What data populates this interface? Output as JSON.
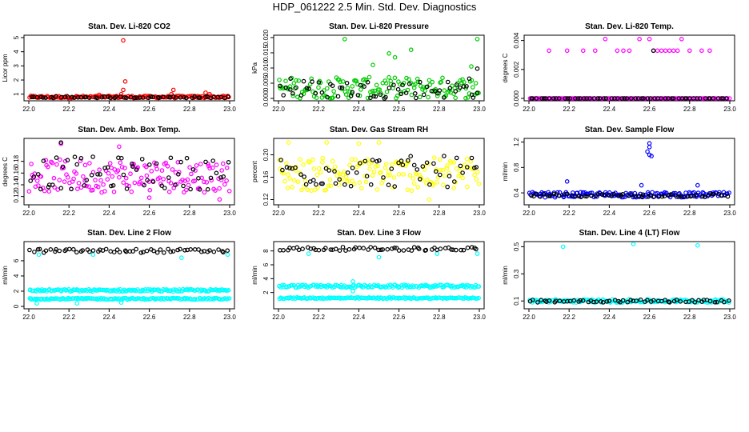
{
  "page": {
    "title": "HDP_061222  2.5 Min. Std. Dev. Diagnostics"
  },
  "chart_data": [
    {
      "type": "scatter",
      "title": "Stan. Dev. Li-820 CO2",
      "ylabel": "Licor ppm",
      "xlim": [
        22.0,
        23.0
      ],
      "ylim": [
        0.7,
        5.0
      ],
      "xticks": [
        "22.0",
        "22.2",
        "22.4",
        "22.6",
        "22.8",
        "23.0"
      ],
      "yticks": [
        "1",
        "2",
        "3",
        "4",
        "5"
      ],
      "series": [
        {
          "name": "primary",
          "color": "#ff0000",
          "base": 0.8,
          "spread": 0.08,
          "outliers": [
            [
              22.47,
              4.8
            ],
            [
              22.48,
              1.9
            ],
            [
              22.47,
              1.3
            ],
            [
              22.46,
              1.0
            ],
            [
              22.72,
              1.3
            ],
            [
              22.71,
              1.0
            ],
            [
              22.88,
              1.1
            ],
            [
              22.9,
              1.0
            ],
            [
              22.35,
              0.95
            ]
          ]
        },
        {
          "name": "secondary",
          "color": "#000000",
          "base": 0.78,
          "spread": 0.05,
          "outliers": []
        }
      ]
    },
    {
      "type": "scatter",
      "title": "Stan. Dev. Li-820 Pressure",
      "ylabel": "kPa",
      "xlim": [
        22.0,
        23.0
      ],
      "ylim": [
        0.0,
        0.02
      ],
      "xticks": [
        "22.0",
        "22.2",
        "22.4",
        "22.6",
        "22.8",
        "23.0"
      ],
      "yticks": [
        "0.000",
        "0.005",
        "0.010",
        "0.015",
        "0.020"
      ],
      "series": [
        {
          "name": "primary",
          "color": "#00cc00",
          "base": 0.0035,
          "spread": 0.0035,
          "outliers": [
            [
              22.33,
              0.0195
            ],
            [
              22.99,
              0.0195
            ],
            [
              22.66,
              0.016
            ],
            [
              22.55,
              0.0148
            ],
            [
              22.58,
              0.0135
            ],
            [
              22.47,
              0.011
            ],
            [
              22.96,
              0.0105
            ]
          ]
        },
        {
          "name": "secondary",
          "color": "#000000",
          "base": 0.003,
          "spread": 0.003,
          "outliers": [
            [
              22.99,
              0.0098
            ],
            [
              22.06,
              0.0065
            ],
            [
              22.95,
              0.0065
            ]
          ]
        }
      ]
    },
    {
      "type": "scatter",
      "title": "Stan. Dev. Li-820 Temp.",
      "ylabel": "degrees C",
      "xlim": [
        22.0,
        23.0
      ],
      "ylim": [
        0.0,
        0.0042
      ],
      "xticks": [
        "22.0",
        "22.2",
        "22.4",
        "22.6",
        "22.8",
        "23.0"
      ],
      "yticks": [
        "0.000",
        "0.002",
        "0.004"
      ],
      "series": [
        {
          "name": "primary",
          "color": "#ff00ff",
          "base": 0.0,
          "spread": 0.0,
          "outliers": [
            [
              22.1,
              0.0033
            ],
            [
              22.19,
              0.0033
            ],
            [
              22.27,
              0.0033
            ],
            [
              22.33,
              0.0033
            ],
            [
              22.38,
              0.0041
            ],
            [
              22.44,
              0.0033
            ],
            [
              22.47,
              0.0033
            ],
            [
              22.5,
              0.0033
            ],
            [
              22.55,
              0.0041
            ],
            [
              22.62,
              0.0033
            ],
            [
              22.64,
              0.0033
            ],
            [
              22.66,
              0.0033
            ],
            [
              22.68,
              0.0033
            ],
            [
              22.7,
              0.0033
            ],
            [
              22.72,
              0.0033
            ],
            [
              22.74,
              0.0033
            ],
            [
              22.8,
              0.0033
            ],
            [
              22.86,
              0.0033
            ],
            [
              22.9,
              0.0033
            ],
            [
              22.76,
              0.0041
            ],
            [
              22.6,
              0.0041
            ]
          ]
        },
        {
          "name": "secondary",
          "color": "#000000",
          "base": 0.0,
          "spread": 0.0,
          "outliers": [
            [
              22.62,
              0.0033
            ]
          ]
        }
      ]
    },
    {
      "type": "scatter",
      "title": "Stan. Dev. Amb. Box Temp.",
      "ylabel": "degrees C",
      "xlim": [
        22.0,
        23.0
      ],
      "ylim": [
        0.11,
        0.215
      ],
      "xticks": [
        "22.0",
        "22.2",
        "22.4",
        "22.6",
        "22.8",
        "23.0"
      ],
      "yticks": [
        "0.12",
        "0.14",
        "0.16",
        "0.18"
      ],
      "series": [
        {
          "name": "primary",
          "color": "#ff00ff",
          "base": 0.155,
          "spread": 0.028,
          "outliers": [
            [
              22.16,
              0.21
            ],
            [
              22.45,
              0.205
            ],
            [
              22.95,
              0.115
            ],
            [
              22.6,
              0.118
            ]
          ]
        },
        {
          "name": "secondary",
          "color": "#000000",
          "base": 0.16,
          "spread": 0.028,
          "outliers": [
            [
              22.16,
              0.212
            ]
          ]
        }
      ]
    },
    {
      "type": "scatter",
      "title": "Stan. Dev. Gas Stream RH",
      "ylabel": "percent",
      "xlim": [
        22.0,
        23.0
      ],
      "ylim": [
        0.115,
        0.225
      ],
      "xticks": [
        "22.0",
        "22.2",
        "22.4",
        "22.6",
        "22.8",
        "23.0"
      ],
      "yticks": [
        "0.12",
        "0.16",
        "0.20"
      ],
      "series": [
        {
          "name": "primary",
          "color": "#ffff00",
          "base": 0.165,
          "spread": 0.03,
          "outliers": [
            [
              22.05,
              0.222
            ],
            [
              22.24,
              0.222
            ],
            [
              22.4,
              0.22
            ],
            [
              22.5,
              0.222
            ],
            [
              22.75,
              0.12
            ]
          ]
        },
        {
          "name": "secondary",
          "color": "#000000",
          "base": 0.17,
          "spread": 0.028,
          "outliers": []
        }
      ]
    },
    {
      "type": "scatter",
      "title": "Stan. Dev. Sample Flow",
      "ylabel": "ml/min",
      "xlim": [
        22.0,
        23.0
      ],
      "ylim": [
        0.25,
        1.22
      ],
      "xticks": [
        "22.0",
        "22.2",
        "22.4",
        "22.6",
        "22.8",
        "23.0"
      ],
      "yticks": [
        "0.4",
        "0.8",
        "1.2"
      ],
      "series": [
        {
          "name": "primary",
          "color": "#0000ff",
          "base": 0.37,
          "spread": 0.04,
          "outliers": [
            [
              22.6,
              1.18
            ],
            [
              22.6,
              1.12
            ],
            [
              22.59,
              1.05
            ],
            [
              22.6,
              1.0
            ],
            [
              22.61,
              0.98
            ],
            [
              22.56,
              0.52
            ],
            [
              22.19,
              0.58
            ],
            [
              22.84,
              0.52
            ]
          ]
        },
        {
          "name": "secondary",
          "color": "#000000",
          "base": 0.36,
          "spread": 0.025,
          "outliers": []
        }
      ]
    },
    {
      "type": "scatter",
      "title": "Stan. Dev. Line 2 Flow",
      "ylabel": "ml/min",
      "xlim": [
        22.0,
        23.0
      ],
      "ylim": [
        0.0,
        8.2
      ],
      "xticks": [
        "22.0",
        "22.2",
        "22.4",
        "22.6",
        "22.8",
        "23.0"
      ],
      "yticks": [
        "0",
        "2",
        "4",
        "6"
      ],
      "series": [
        {
          "name": "band-high",
          "color": "#00ffff",
          "base": 2.1,
          "spread": 0.15,
          "outliers": [
            [
              22.05,
              6.8
            ],
            [
              22.32,
              6.8
            ],
            [
              22.76,
              6.4
            ],
            [
              22.99,
              6.8
            ]
          ]
        },
        {
          "name": "band-low",
          "color": "#00ffff",
          "base": 1.0,
          "spread": 0.1,
          "outliers": [
            [
              22.04,
              0.4
            ],
            [
              22.24,
              0.4
            ],
            [
              22.46,
              0.5
            ]
          ]
        },
        {
          "name": "secondary",
          "color": "#000000",
          "base": 7.3,
          "spread": 0.25,
          "outliers": []
        }
      ]
    },
    {
      "type": "scatter",
      "title": "Stan. Dev. Line 3 Flow",
      "ylabel": "ml/min",
      "xlim": [
        22.0,
        23.0
      ],
      "ylim": [
        0.0,
        9.0
      ],
      "xticks": [
        "22.0",
        "22.2",
        "22.4",
        "22.6",
        "22.8",
        "23.0"
      ],
      "yticks": [
        "2",
        "4",
        "6",
        "8"
      ],
      "series": [
        {
          "name": "band-high",
          "color": "#00ffff",
          "base": 2.9,
          "spread": 0.2,
          "outliers": [
            [
              22.37,
              3.6
            ],
            [
              22.37,
              2.2
            ],
            [
              22.15,
              7.6
            ],
            [
              22.5,
              7.1
            ],
            [
              22.79,
              7.6
            ],
            [
              22.99,
              7.6
            ]
          ]
        },
        {
          "name": "band-low",
          "color": "#00ffff",
          "base": 1.2,
          "spread": 0.1,
          "outliers": []
        },
        {
          "name": "secondary",
          "color": "#000000",
          "base": 8.3,
          "spread": 0.25,
          "outliers": []
        }
      ]
    },
    {
      "type": "scatter",
      "title": "Stan. Dev. Line 4 (LT) Flow",
      "ylabel": "ml/min",
      "xlim": [
        22.0,
        23.0
      ],
      "ylim": [
        0.06,
        0.52
      ],
      "xticks": [
        "22.0",
        "22.2",
        "22.4",
        "22.6",
        "22.8",
        "23.0"
      ],
      "yticks": [
        "0.1",
        "0.3",
        "0.5"
      ],
      "series": [
        {
          "name": "primary",
          "color": "#00ffff",
          "base": 0.1,
          "spread": 0.012,
          "outliers": [
            [
              22.17,
              0.5
            ],
            [
              22.52,
              0.52
            ],
            [
              22.84,
              0.51
            ]
          ]
        },
        {
          "name": "secondary",
          "color": "#000000",
          "base": 0.1,
          "spread": 0.01,
          "outliers": []
        }
      ]
    }
  ]
}
